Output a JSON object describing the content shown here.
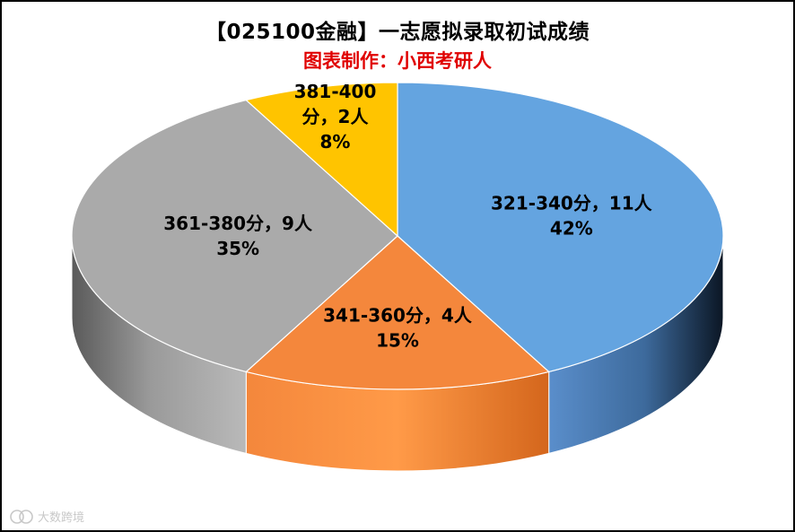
{
  "chart_data": {
    "type": "pie",
    "title": "【025100金融】一志愿拟录取初试成绩",
    "subtitle": "图表制作：小西考研人",
    "slices": [
      {
        "label": "321-340分，11人",
        "percent_label": "42%",
        "value": 11,
        "color": "#64a4e0"
      },
      {
        "label": "341-360分，4人",
        "percent_label": "15%",
        "value": 4,
        "color": "#f4873c"
      },
      {
        "label": "361-380分，9人",
        "percent_label": "35%",
        "value": 9,
        "color": "#aaaaaa"
      },
      {
        "label": "381-400分，2人",
        "percent_label": "8%",
        "value": 2,
        "color": "#ffc400"
      }
    ],
    "legend": "none",
    "style": "3d"
  },
  "watermark": {
    "text": "大数跨境"
  }
}
